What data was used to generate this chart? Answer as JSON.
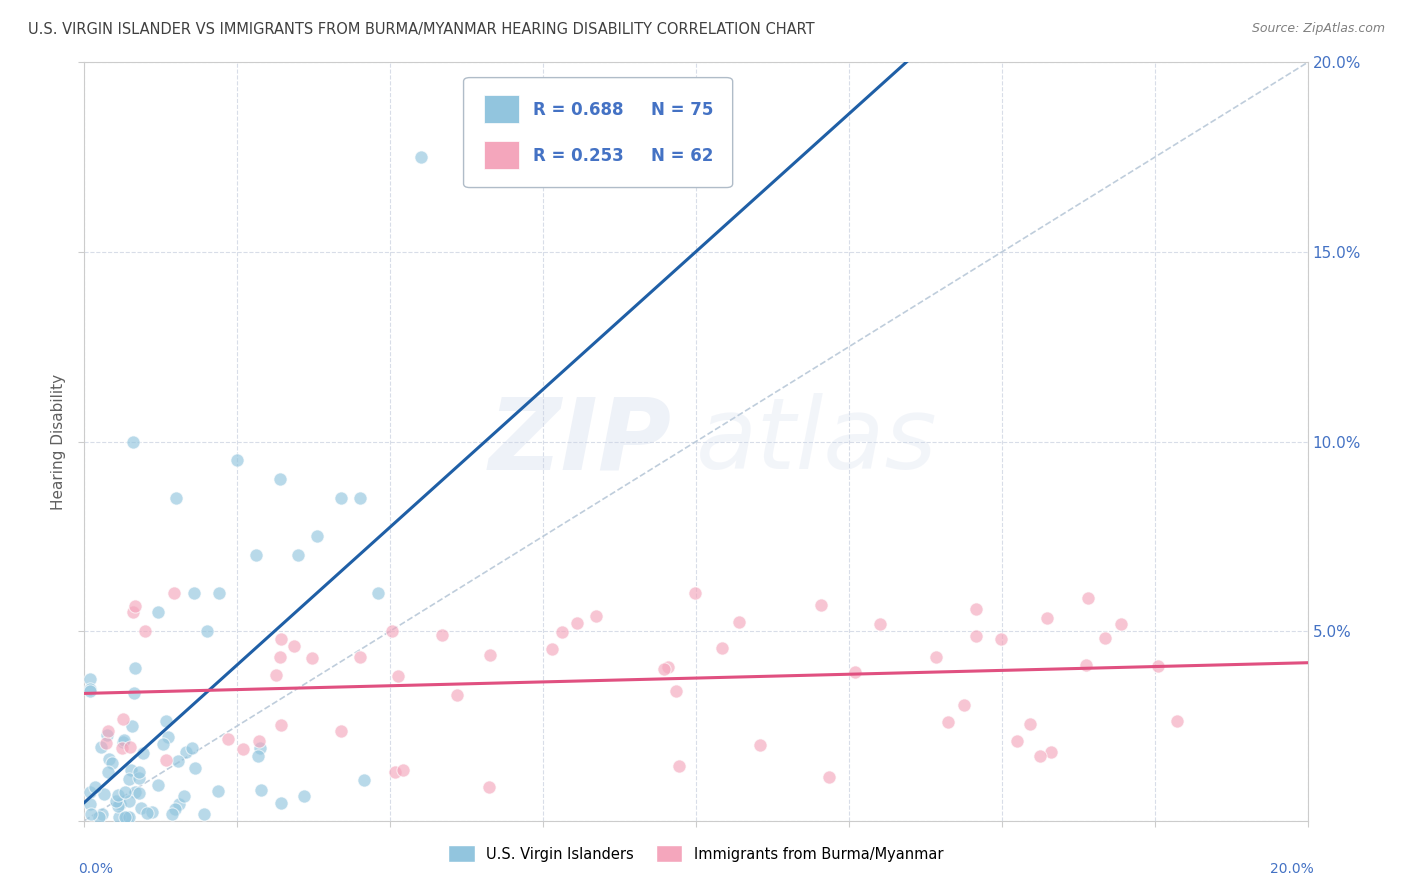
{
  "title": "U.S. VIRGIN ISLANDER VS IMMIGRANTS FROM BURMA/MYANMAR HEARING DISABILITY CORRELATION CHART",
  "source": "Source: ZipAtlas.com",
  "ylabel": "Hearing Disability",
  "xlim": [
    0.0,
    0.2
  ],
  "ylim": [
    0.0,
    0.2
  ],
  "xticks": [
    0.0,
    0.025,
    0.05,
    0.075,
    0.1,
    0.125,
    0.15,
    0.175,
    0.2
  ],
  "ytick_vals": [
    0.0,
    0.05,
    0.1,
    0.15,
    0.2
  ],
  "ytick_labels": [
    "",
    "5.0%",
    "10.0%",
    "15.0%",
    "20.0%"
  ],
  "series1_color": "#92c5de",
  "series2_color": "#f4a6bc",
  "series1_label": "U.S. Virgin Islanders",
  "series2_label": "Immigrants from Burma/Myanmar",
  "legend_R1": "R = 0.688",
  "legend_N1": "N = 75",
  "legend_R2": "R = 0.253",
  "legend_N2": "N = 62",
  "regression1_color": "#1f5fa6",
  "regression2_color": "#e05080",
  "diagonal_color": "#b8c8d8",
  "watermark_zip": "ZIP",
  "watermark_atlas": "atlas",
  "background_color": "#ffffff",
  "grid_color": "#d8dde8",
  "title_color": "#404040",
  "source_color": "#808080",
  "axis_label_color": "#606060",
  "tick_color": "#4472c4",
  "legend_box_color": "#c8d0d8",
  "legend_text_color": "#4472c4"
}
